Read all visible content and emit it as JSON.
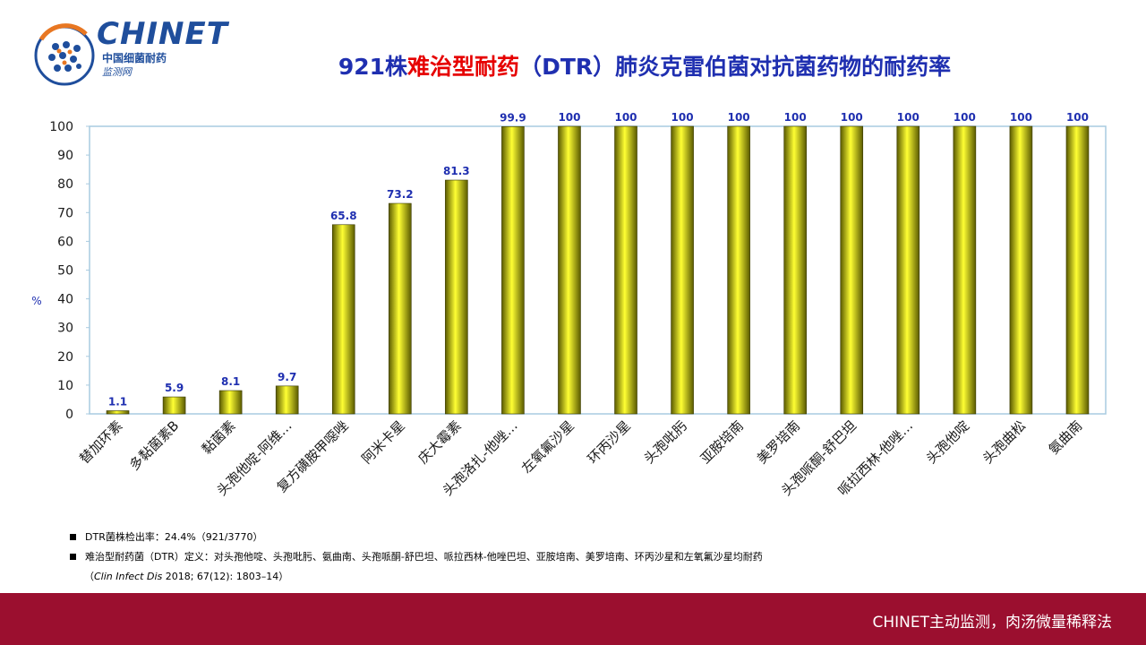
{
  "logo": {
    "name": "CHINET",
    "subtitle": "中国细菌耐药",
    "subtitle2": "监测网"
  },
  "title": {
    "part1": "921株",
    "part2": "难治型耐药",
    "part3": "（DTR）肺炎克雷伯菌对抗菌药物的耐药率"
  },
  "colors": {
    "title_blue": "#1f2fb0",
    "title_red": "#e60000",
    "bar_fill": "#c8c800",
    "footer": "#9b0f2f",
    "value_label": "#1f2fb0"
  },
  "chart_data": {
    "type": "bar",
    "categories": [
      "替加环素",
      "多黏菌素B",
      "黏菌素",
      "头孢他啶-阿维…",
      "复方磺胺甲噁唑",
      "阿米卡星",
      "庆大霉素",
      "头孢洛扎-他唑…",
      "左氧氟沙星",
      "环丙沙星",
      "头孢吡肟",
      "亚胺培南",
      "美罗培南",
      "头孢哌酮-舒巴坦",
      "哌拉西林-他唑…",
      "头孢他啶",
      "头孢曲松",
      "氨曲南"
    ],
    "values": [
      1.1,
      5.9,
      8.1,
      9.7,
      65.8,
      73.2,
      81.3,
      99.9,
      100,
      100,
      100,
      100,
      100,
      100,
      100,
      100,
      100,
      100
    ],
    "value_labels": [
      "1.1",
      "5.9",
      "8.1",
      "9.7",
      "65.8",
      "73.2",
      "81.3",
      "99.9",
      "100",
      "100",
      "100",
      "100",
      "100",
      "100",
      "100",
      "100",
      "100",
      "100"
    ],
    "ylabel": "%",
    "ylim": [
      0,
      100
    ],
    "yticks": [
      "0",
      "10",
      "20",
      "30",
      "40",
      "50",
      "60",
      "70",
      "80",
      "90",
      "100"
    ],
    "grid": false,
    "legend": "none"
  },
  "notes": {
    "line1": "DTR菌株检出率：24.4%（921/3770）",
    "line2": "难治型耐药菌（DTR）定义：对头孢他啶、头孢吡肟、氨曲南、头孢哌酮-舒巴坦、哌拉西林-他唑巴坦、亚胺培南、美罗培南、环丙沙星和左氧氟沙星均耐药",
    "cite_open": "（",
    "cite_journal": "Clin Infect Dis",
    "cite_rest": " 2018; 67(12): 1803–14）"
  },
  "footer": {
    "text": "CHINET主动监测，肉汤微量稀释法"
  }
}
